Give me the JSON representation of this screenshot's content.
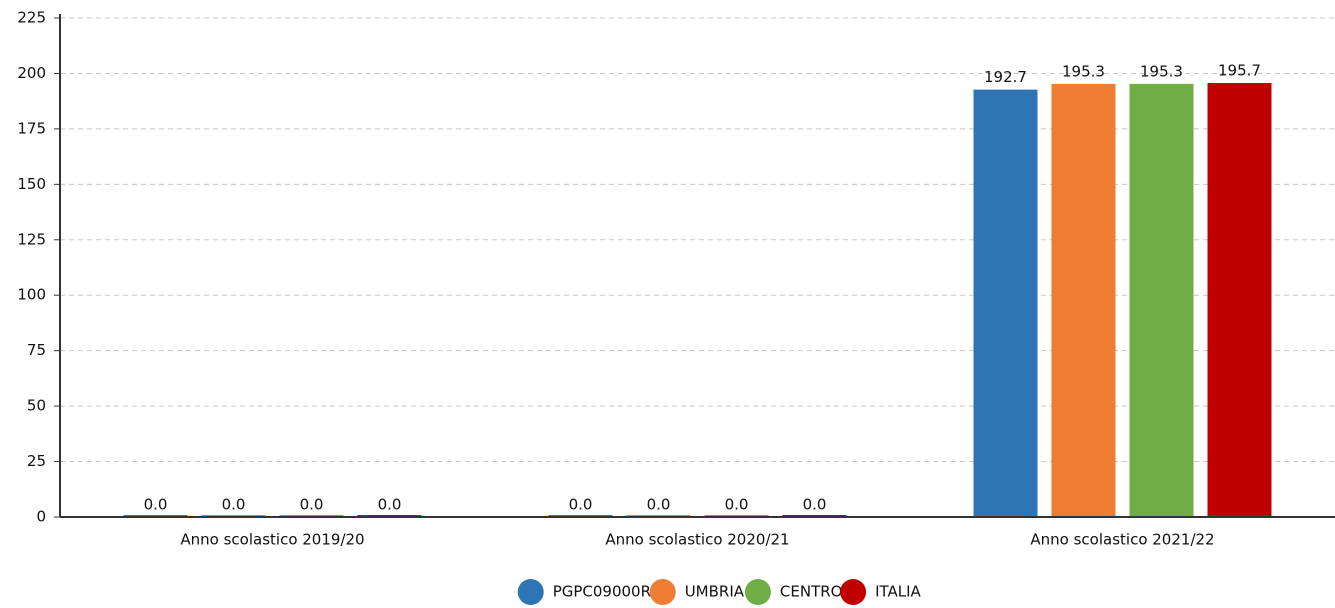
{
  "chart_data": {
    "type": "bar",
    "categories": [
      "Anno scolastico 2019/20",
      "Anno scolastico 2020/21",
      "Anno scolastico 2021/22"
    ],
    "series": [
      {
        "name": "PGPC09000R",
        "color": "#2e75b6",
        "values": [
          0,
          0,
          192.7
        ],
        "value_labels": [
          "0.0",
          "0.0",
          "192.7"
        ]
      },
      {
        "name": "UMBRIA",
        "color": "#ed7d31",
        "values": [
          0,
          0,
          195.3
        ],
        "value_labels": [
          "0.0",
          "0.0",
          "195.3"
        ]
      },
      {
        "name": "CENTRO",
        "color": "#70ad47",
        "values": [
          0,
          0,
          195.3
        ],
        "value_labels": [
          "0.0",
          "0.0",
          "195.3"
        ]
      },
      {
        "name": "ITALIA",
        "color": "#c00000",
        "values": [
          0,
          0,
          195.7
        ],
        "value_labels": [
          "0.0",
          "0.0",
          "195.7"
        ]
      }
    ],
    "ylim": [
      0,
      225
    ],
    "yticks": [
      0,
      25,
      50,
      75,
      100,
      125,
      150,
      175,
      200,
      225
    ],
    "grid": true,
    "legend": "bottom"
  }
}
